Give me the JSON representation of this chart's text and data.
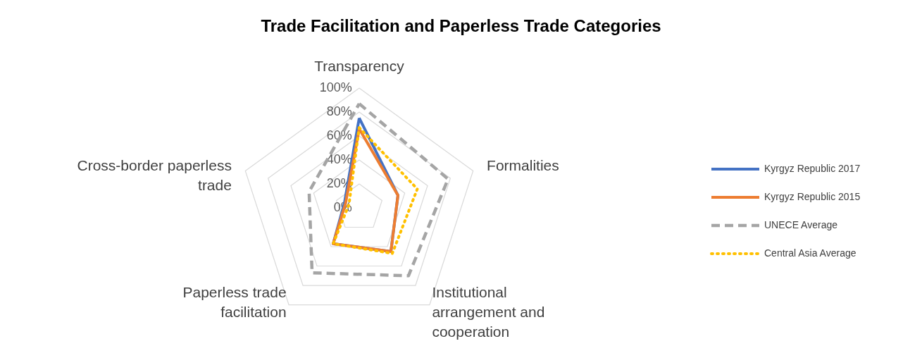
{
  "chart_data": {
    "type": "radar",
    "title": "Trade Facilitation and Paperless Trade Categories",
    "categories": [
      "Transparency",
      "Formalities",
      "Institutional arrangement and cooperation",
      "Paperless trade facilitation",
      "Cross-border paperless trade"
    ],
    "series": [
      {
        "name": "Kyrgyz Republic 2017",
        "color": "#4472c4",
        "line_style": "solid",
        "values": [
          75,
          34,
          45,
          37,
          13
        ]
      },
      {
        "name": "Kyrgyz Republic 2015",
        "color": "#ed7d31",
        "line_style": "solid",
        "values": [
          66,
          34,
          45,
          37,
          12
        ]
      },
      {
        "name": "UNECE Average",
        "color": "#a5a5a5",
        "line_style": "dashed",
        "values": [
          87,
          78,
          70,
          67,
          44
        ]
      },
      {
        "name": "Central Asia Average",
        "color": "#ffc000",
        "line_style": "dotted",
        "values": [
          67,
          51,
          47,
          37,
          9
        ]
      }
    ],
    "ylim": [
      0,
      100
    ],
    "yticks": [
      {
        "value": 0,
        "label": "0%"
      },
      {
        "value": 20,
        "label": "20%"
      },
      {
        "value": 40,
        "label": "40%"
      },
      {
        "value": 60,
        "label": "60%"
      },
      {
        "value": 80,
        "label": "80%"
      },
      {
        "value": 100,
        "label": "100%"
      }
    ],
    "grid": true,
    "legend": "right",
    "marker": "none"
  }
}
